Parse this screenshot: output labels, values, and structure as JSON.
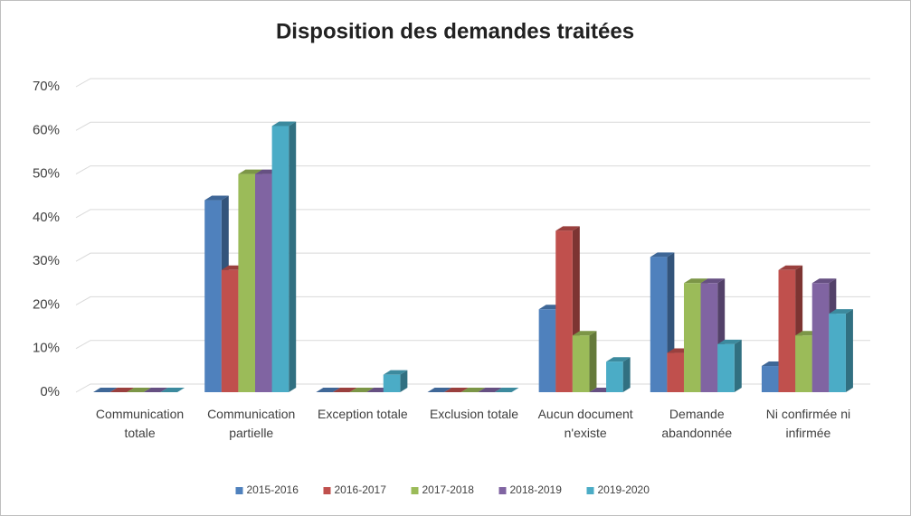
{
  "chart_data": {
    "type": "bar3d",
    "title": "Disposition des demandes traitées",
    "categories": [
      "Communication totale",
      "Communication partielle",
      "Exception totale",
      "Exclusion totale",
      "Aucun document n'existe",
      "Demande abandonnée",
      "Ni confirmée ni infirmée"
    ],
    "series": [
      {
        "name": "2015-2016",
        "color": "#4f81bd",
        "values": [
          0,
          44,
          0,
          0,
          19,
          31,
          6
        ]
      },
      {
        "name": "2016-2017",
        "color": "#c0504d",
        "values": [
          0,
          28,
          0,
          0,
          37,
          9,
          28
        ]
      },
      {
        "name": "2017-2018",
        "color": "#9bbb59",
        "values": [
          0,
          50,
          0,
          0,
          13,
          25,
          13
        ]
      },
      {
        "name": "2018-2019",
        "color": "#8064a2",
        "values": [
          0,
          50,
          0,
          0,
          0,
          25,
          25
        ]
      },
      {
        "name": "2019-2020",
        "color": "#4bacc6",
        "values": [
          0,
          61,
          4,
          0,
          7,
          11,
          18
        ]
      }
    ],
    "ylim": [
      0,
      70
    ],
    "yticks": [
      {
        "value": 0,
        "label": "0%"
      },
      {
        "value": 10,
        "label": "10%"
      },
      {
        "value": 20,
        "label": "20%"
      },
      {
        "value": 30,
        "label": "30%"
      },
      {
        "value": 40,
        "label": "40%"
      },
      {
        "value": 50,
        "label": "50%"
      },
      {
        "value": 60,
        "label": "60%"
      },
      {
        "value": 70,
        "label": "70%"
      }
    ],
    "grid": true,
    "legend": "bottom"
  }
}
